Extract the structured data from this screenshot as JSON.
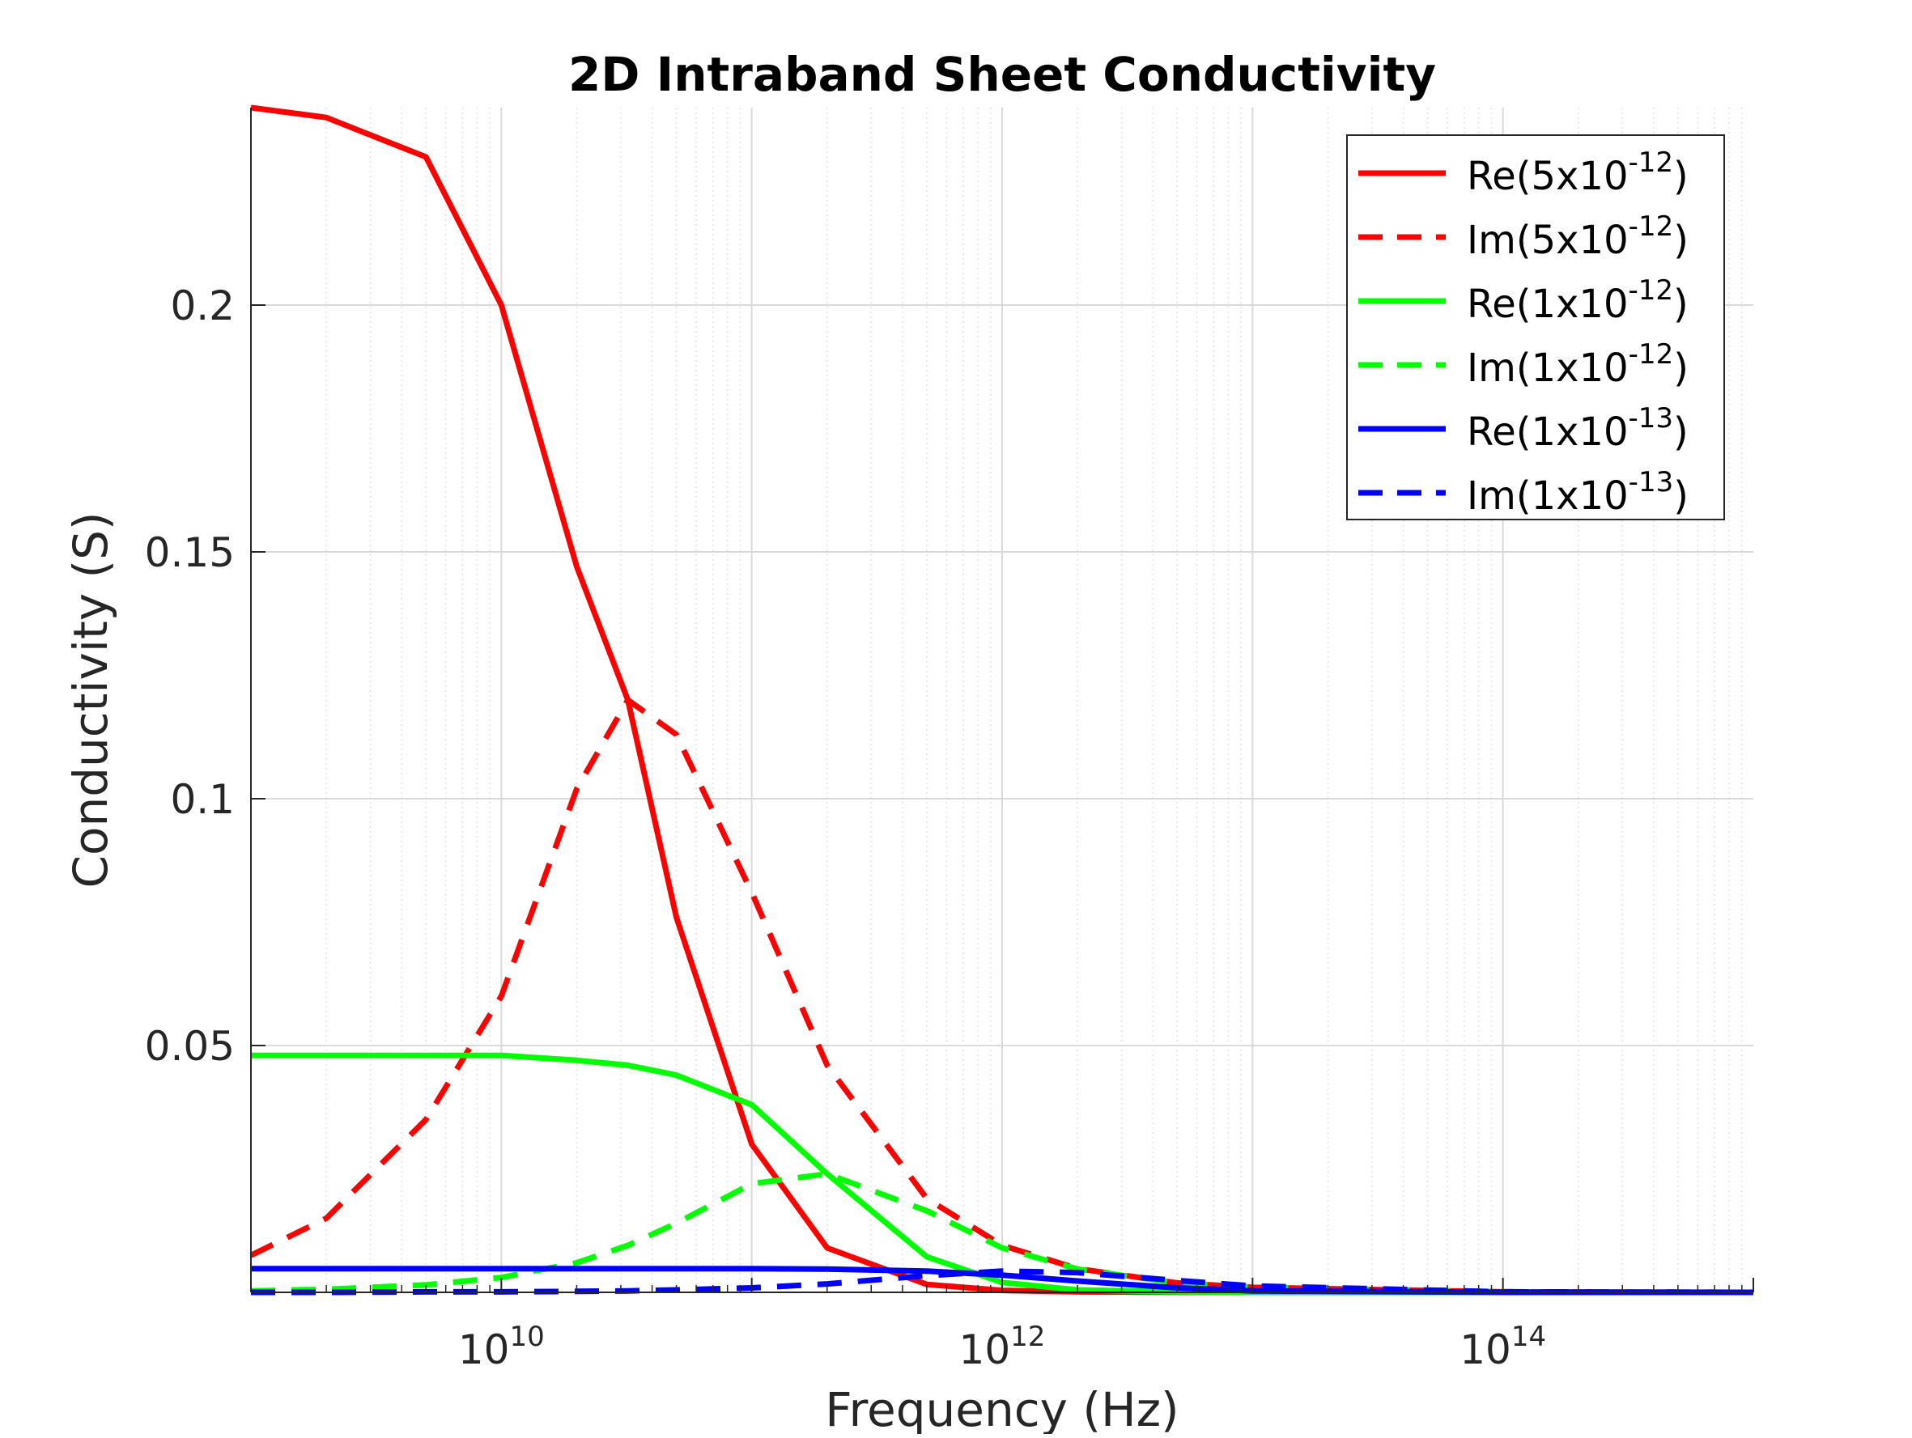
{
  "chart_data": {
    "type": "line",
    "title": "2D Intraband Sheet Conductivity",
    "xlabel": "Frequency (Hz)",
    "ylabel": "Conductivity (S)",
    "xscale": "log",
    "xlim": [
      1000000000.0,
      1000000000000000.0
    ],
    "ylim": [
      0,
      0.24
    ],
    "grid": true,
    "minor_grid": true,
    "legend_placement": "top-right",
    "x_ticks": [
      {
        "value": 10000000000.0,
        "base": "10",
        "exp": "10"
      },
      {
        "value": 1000000000000.0,
        "base": "10",
        "exp": "12"
      },
      {
        "value": 100000000000000.0,
        "base": "10",
        "exp": "14"
      }
    ],
    "y_ticks": [
      {
        "value": 0.05,
        "label": "0.05"
      },
      {
        "value": 0.1,
        "label": "0.1"
      },
      {
        "value": 0.15,
        "label": "0.15"
      },
      {
        "value": 0.2,
        "label": "0.2"
      }
    ],
    "x": [
      1000000000.0,
      2000000000.0,
      5000000000.0,
      10000000000.0,
      20000000000.0,
      32000000000.0,
      50000000000.0,
      100000000000.0,
      200000000000.0,
      500000000000.0,
      1000000000000.0,
      2000000000000.0,
      5000000000000.0,
      10000000000000.0,
      100000000000000.0,
      1000000000000000.0
    ],
    "series": [
      {
        "name": "Re(5x10",
        "exp": "-12",
        "suffix": ")",
        "color": "#ff0000",
        "dash": "solid",
        "values": [
          0.24,
          0.238,
          0.23,
          0.2,
          0.147,
          0.12,
          0.076,
          0.03,
          0.009,
          0.0016,
          0.0004,
          0.0001,
          2e-05,
          0.0,
          0.0,
          0.0
        ]
      },
      {
        "name": "Im(5x10",
        "exp": "-12",
        "suffix": ")",
        "color": "#ff0000",
        "dash": "dashed",
        "values": [
          0.0075,
          0.015,
          0.035,
          0.06,
          0.102,
          0.12,
          0.113,
          0.081,
          0.046,
          0.019,
          0.0095,
          0.0048,
          0.0019,
          0.001,
          0.0001,
          0.0
        ]
      },
      {
        "name": "Re(1x10",
        "exp": "-12",
        "suffix": ")",
        "color": "#00ff00",
        "dash": "solid",
        "values": [
          0.048,
          0.048,
          0.048,
          0.048,
          0.047,
          0.046,
          0.044,
          0.038,
          0.024,
          0.0072,
          0.002,
          0.0005,
          0.0001,
          0.0,
          0.0,
          0.0
        ]
      },
      {
        "name": "Im(1x10",
        "exp": "-12",
        "suffix": ")",
        "color": "#00ff00",
        "dash": "dashed",
        "values": [
          0.0003,
          0.0006,
          0.0015,
          0.003,
          0.006,
          0.0095,
          0.014,
          0.022,
          0.024,
          0.0165,
          0.009,
          0.0047,
          0.0019,
          0.001,
          0.0001,
          0.0
        ]
      },
      {
        "name": "Re(1x10",
        "exp": "-13",
        "suffix": ")",
        "color": "#0000ff",
        "dash": "solid",
        "values": [
          0.0048,
          0.0048,
          0.0048,
          0.0048,
          0.0048,
          0.0048,
          0.0048,
          0.0048,
          0.0047,
          0.0043,
          0.0035,
          0.0023,
          0.0009,
          0.0003,
          0.0,
          0.0
        ]
      },
      {
        "name": "Im(1x10",
        "exp": "-13",
        "suffix": ")",
        "color": "#0000ff",
        "dash": "dashed",
        "values": [
          0.0,
          0.0,
          0.0001,
          0.0001,
          0.0002,
          0.0003,
          0.0005,
          0.0009,
          0.0017,
          0.0034,
          0.0043,
          0.004,
          0.0024,
          0.0013,
          0.0001,
          0.0
        ]
      }
    ]
  }
}
